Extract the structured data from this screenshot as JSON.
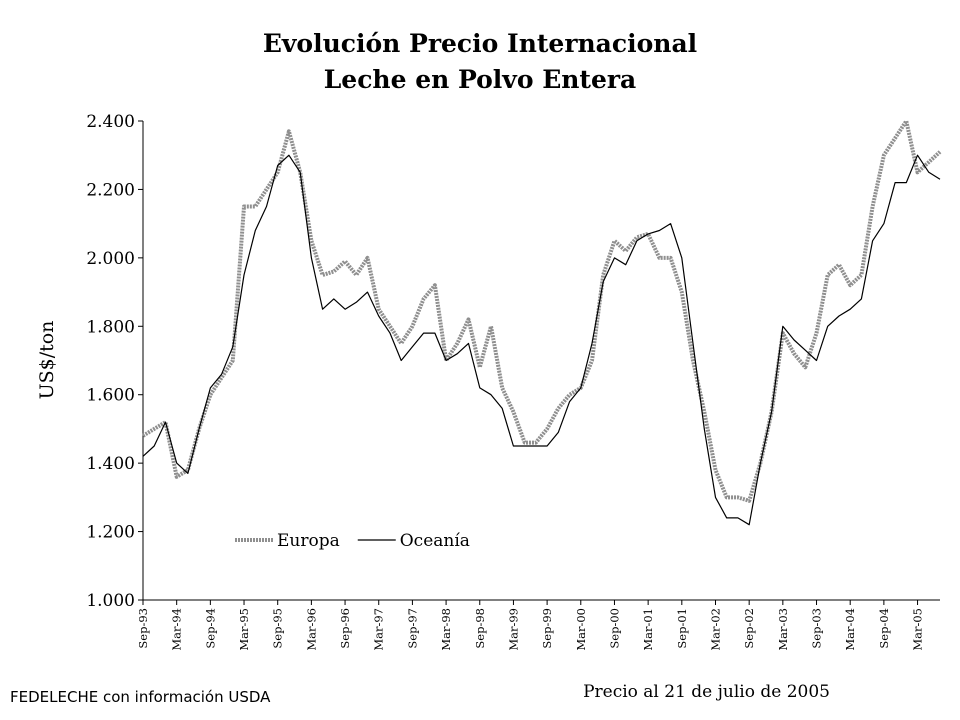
{
  "chart_data": {
    "type": "line",
    "title": "Evolución Precio Internacional",
    "subtitle": "Leche en Polvo Entera",
    "y_label": "US$/ton",
    "footnote_left": "FEDELECHE con información USDA",
    "footnote_right": "Precio al 21 de julio de 2005",
    "legend": "lower left",
    "categories": [
      "Sep-93",
      null,
      null,
      "Mar-94",
      null,
      null,
      "Sep-94",
      null,
      null,
      "Mar-95",
      null,
      null,
      "Sep-95",
      null,
      null,
      "Mar-96",
      null,
      null,
      "Sep-96",
      null,
      null,
      "Mar-97",
      null,
      null,
      "Sep-97",
      null,
      null,
      "Mar-98",
      null,
      null,
      "Sep-98",
      null,
      null,
      "Mar-99",
      null,
      null,
      "Sep-99",
      null,
      null,
      "Mar-00",
      null,
      null,
      "Sep-00",
      null,
      null,
      "Mar-01",
      null,
      null,
      "Sep-01",
      null,
      null,
      "Mar-02",
      null,
      null,
      "Sep-02",
      null,
      null,
      "Mar-03",
      null,
      null,
      "Sep-03",
      null,
      null,
      "Mar-04",
      null,
      null,
      "Sep-04",
      null,
      null,
      "Mar-05",
      null,
      null
    ],
    "series": [
      {
        "name": "Europa",
        "color": "#8f8f8f",
        "values": [
          1480,
          1500,
          1520,
          1360,
          1380,
          1500,
          1600,
          1650,
          1700,
          2150,
          2150,
          2200,
          2250,
          2370,
          2250,
          2050,
          1950,
          1960,
          1990,
          1950,
          2000,
          1850,
          1800,
          1750,
          1800,
          1880,
          1920,
          1700,
          1750,
          1820,
          1680,
          1800,
          1620,
          1550,
          1460,
          1460,
          1500,
          1560,
          1600,
          1620,
          1700,
          1950,
          2050,
          2020,
          2060,
          2070,
          2000,
          2000,
          1900,
          1700,
          1550,
          1380,
          1300,
          1300,
          1290,
          1400,
          1550,
          1780,
          1720,
          1680,
          1780,
          1950,
          1980,
          1920,
          1950,
          2150,
          2300,
          2350,
          2400,
          2250,
          2280,
          2310
        ]
      },
      {
        "name": "Oceanía",
        "color": "#000000",
        "values": [
          1420,
          1450,
          1520,
          1400,
          1370,
          1500,
          1620,
          1660,
          1740,
          1950,
          2080,
          2150,
          2270,
          2300,
          2250,
          2000,
          1850,
          1880,
          1850,
          1870,
          1900,
          1830,
          1780,
          1700,
          1740,
          1780,
          1780,
          1700,
          1720,
          1750,
          1620,
          1600,
          1560,
          1450,
          1450,
          1450,
          1450,
          1490,
          1580,
          1620,
          1750,
          1930,
          2000,
          1980,
          2050,
          2070,
          2080,
          2100,
          2000,
          1750,
          1500,
          1300,
          1240,
          1240,
          1220,
          1400,
          1550,
          1800,
          1760,
          1730,
          1700,
          1800,
          1830,
          1850,
          1880,
          2050,
          2100,
          2220,
          2220,
          2300,
          2250,
          2230
        ]
      }
    ],
    "ylim": [
      1000,
      2400
    ],
    "yticks": [
      {
        "value": 1000,
        "label": "1.000"
      },
      {
        "value": 1200,
        "label": "1.200"
      },
      {
        "value": 1400,
        "label": "1.400"
      },
      {
        "value": 1600,
        "label": "1.600"
      },
      {
        "value": 1800,
        "label": "1.800"
      },
      {
        "value": 2000,
        "label": "2.000"
      },
      {
        "value": 2200,
        "label": "2.200"
      },
      {
        "value": 2400,
        "label": "2.400"
      }
    ]
  }
}
